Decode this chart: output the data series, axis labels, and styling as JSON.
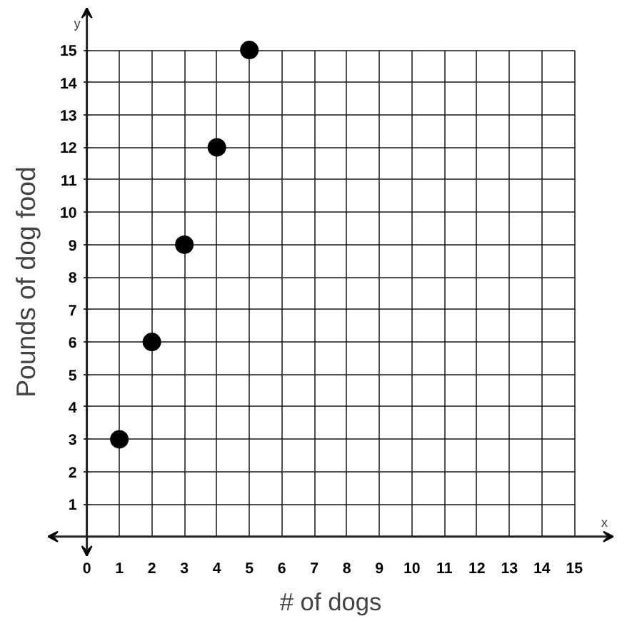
{
  "chart_data": {
    "type": "scatter",
    "xlabel": "# of dogs",
    "ylabel": "Pounds of dog food",
    "x": [
      1,
      2,
      3,
      4,
      5
    ],
    "series": [
      {
        "color": "#000000",
        "values": [
          3,
          6,
          9,
          12,
          15
        ]
      }
    ],
    "xlim": [
      -1.2,
      16.2
    ],
    "ylim": [
      -0.6,
      16.3
    ],
    "xticks": [
      0,
      1,
      2,
      3,
      4,
      5,
      6,
      7,
      8,
      9,
      10,
      11,
      12,
      13,
      14,
      15
    ],
    "yticks": [
      1,
      2,
      3,
      4,
      5,
      6,
      7,
      8,
      9,
      10,
      11,
      12,
      13,
      14,
      15
    ],
    "grid": true,
    "marker": "circle",
    "annotations": [
      "x",
      "y"
    ]
  }
}
